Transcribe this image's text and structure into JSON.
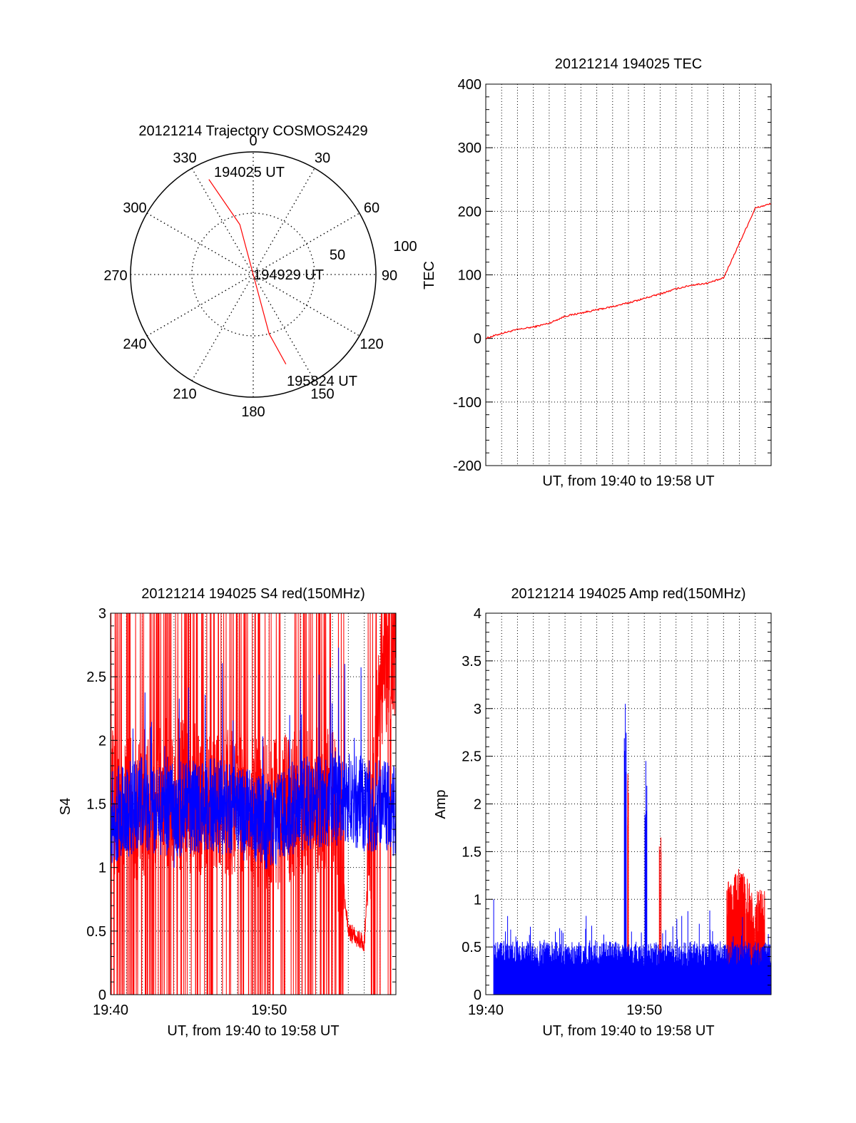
{
  "chart_data": [
    {
      "type": "polar",
      "title": "20121214 Trajectory COSMOS2429",
      "azimuth_labels": [
        "0",
        "30",
        "60",
        "90",
        "120",
        "150",
        "180",
        "210",
        "240",
        "270",
        "300",
        "330"
      ],
      "radial_labels": [
        "50",
        "100"
      ],
      "trajectory": {
        "color": "#ff0000",
        "points": [
          {
            "azimuth": 335,
            "elevation": 13
          },
          {
            "azimuth": 345,
            "elevation": 52
          },
          {
            "azimuth": 0,
            "elevation": 90
          },
          {
            "azimuth": 165,
            "elevation": 45
          },
          {
            "azimuth": 160,
            "elevation": 20
          }
        ],
        "labels": [
          {
            "text": "194025 UT",
            "azimuth": 350,
            "elevation": 12
          },
          {
            "text": "194929 UT",
            "azimuth": 90,
            "elevation": 72
          },
          {
            "text": "195824 UT",
            "azimuth": 150,
            "elevation": 17
          }
        ]
      }
    },
    {
      "type": "line",
      "title": "20121214 194025 TEC",
      "xlabel": "UT, from 19:40 to 19:58 UT",
      "ylabel": "TEC",
      "xlim": [
        "19:40",
        "19:58"
      ],
      "ylim": [
        -200,
        400
      ],
      "yticks": [
        "-200",
        "-100",
        "0",
        "100",
        "200",
        "300",
        "400"
      ],
      "grid": true,
      "series": [
        {
          "color": "#ff0000",
          "x": [
            "19:40",
            "19:41",
            "19:42",
            "19:43",
            "19:44",
            "19:45",
            "19:46",
            "19:47",
            "19:48",
            "19:49",
            "19:50",
            "19:51",
            "19:52",
            "19:53",
            "19:54",
            "19:55",
            "19:56",
            "19:57",
            "19:58"
          ],
          "values": [
            0,
            8,
            14,
            18,
            24,
            35,
            40,
            45,
            50,
            56,
            63,
            70,
            78,
            84,
            87,
            95,
            150,
            205,
            212
          ]
        }
      ]
    },
    {
      "type": "line",
      "title": "20121214 194025 S4 red(150MHz)",
      "xlabel": "UT, from 19:40 to 19:58 UT",
      "ylabel": "S4",
      "xlim": [
        "19:40",
        "19:58"
      ],
      "ylim": [
        0,
        3
      ],
      "xticks": [
        "19:40",
        "19:50"
      ],
      "yticks": [
        "0",
        "0.5",
        "1",
        "1.5",
        "2",
        "2.5",
        "3"
      ],
      "grid": true,
      "series": [
        {
          "color": "#ff0000",
          "note_values": "noisy, frequently saturating between 0 and 3; segment near 0.4 at 19:55-19:57",
          "x": [
            "19:40",
            "19:42",
            "19:44",
            "19:46",
            "19:48",
            "19:50",
            "19:52",
            "19:54",
            "19:55",
            "19:56",
            "19:57",
            "19:58"
          ],
          "values": [
            1.5,
            1.5,
            1.6,
            1.5,
            1.5,
            1.4,
            1.5,
            1.6,
            0.5,
            0.4,
            2.5,
            2.8
          ]
        },
        {
          "color": "#0000ff",
          "x": [
            "19:40",
            "19:42",
            "19:44",
            "19:46",
            "19:48",
            "19:50",
            "19:52",
            "19:54",
            "19:56",
            "19:58"
          ],
          "values": [
            1.4,
            1.5,
            1.45,
            1.5,
            1.45,
            1.35,
            1.5,
            1.55,
            1.5,
            1.45
          ]
        }
      ]
    },
    {
      "type": "line",
      "title": "20121214 194025 Amp red(150MHz)",
      "xlabel": "UT, from 19:40 to 19:58 UT",
      "ylabel": "Amp",
      "xlim": [
        "19:40",
        "19:58"
      ],
      "ylim": [
        0,
        4
      ],
      "xticks": [
        "19:40",
        "19:50"
      ],
      "yticks": [
        "0",
        "0.5",
        "1",
        "1.5",
        "2",
        "2.5",
        "3",
        "3.5",
        "4"
      ],
      "grid": true,
      "series": [
        {
          "color": "#ff0000",
          "x": [
            "19:49",
            "19:51",
            "19:55.5",
            "19:56",
            "19:57"
          ],
          "values": [
            2.6,
            1.7,
            1.2,
            1.35,
            1.1
          ]
        },
        {
          "color": "#0000ff",
          "x": [
            "19:40.5",
            "19:45",
            "19:48.8",
            "19:50.1",
            "19:55",
            "19:58"
          ],
          "values": [
            0.55,
            0.6,
            3.05,
            2.45,
            0.6,
            0.55
          ]
        }
      ]
    }
  ]
}
